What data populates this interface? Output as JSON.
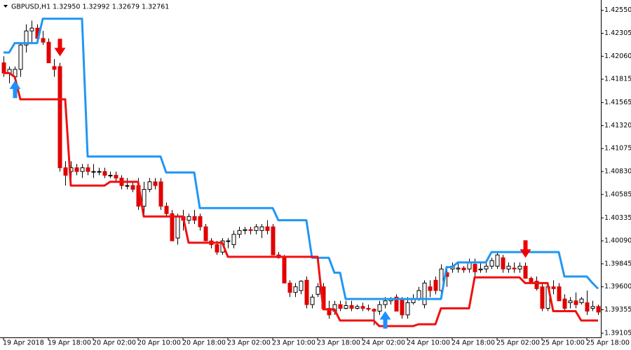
{
  "chart_data": {
    "type": "candlestick",
    "title": "GBPUSD,H1  1.32950 1.32992 1.32679 1.32761",
    "categories": [
      "19 Apr 2018",
      null,
      null,
      null,
      null,
      null,
      null,
      null,
      "19 Apr 18:00",
      null,
      null,
      null,
      null,
      null,
      null,
      null,
      "20 Apr 02:00",
      null,
      null,
      null,
      null,
      null,
      null,
      null,
      "20 Apr 10:00",
      null,
      null,
      null,
      null,
      null,
      null,
      null,
      "20 Apr 18:00",
      null,
      null,
      null,
      null,
      null,
      null,
      null,
      "23 Apr 02:00",
      null,
      null,
      null,
      null,
      null,
      null,
      null,
      "23 Apr 10:00",
      null,
      null,
      null,
      null,
      null,
      null,
      null,
      "23 Apr 18:00",
      null,
      null,
      null,
      null,
      null,
      null,
      null,
      "24 Apr 02:00",
      null,
      null,
      null,
      null,
      null,
      null,
      null,
      "24 Apr 10:00",
      null,
      null,
      null,
      null,
      null,
      null,
      null,
      "24 Apr 18:00",
      null,
      null,
      null,
      null,
      null,
      null,
      null,
      "25 Apr 02:00",
      null,
      null,
      null,
      null,
      null,
      null,
      null,
      "25 Apr 10:00",
      null,
      null,
      null,
      null,
      null,
      null,
      null,
      "25 Apr 18:00",
      null,
      null
    ],
    "open": [
      1.4199,
      1.4188,
      1.4184,
      1.4192,
      1.4218,
      1.4233,
      1.4236,
      1.4225,
      1.4221,
      1.4195,
      1.4195,
      1.4087,
      1.4083,
      1.4087,
      1.4083,
      1.4087,
      1.4083,
      1.4083,
      1.4083,
      1.4079,
      1.4079,
      1.4076,
      1.4068,
      1.4068,
      1.4068,
      1.4046,
      1.4064,
      1.4072,
      1.4072,
      1.4046,
      1.4038,
      1.4012,
      1.4035,
      1.4031,
      1.4035,
      1.4035,
      1.4024,
      1.4009,
      1.4005,
      1.3997,
      1.4009,
      1.4005,
      1.4016,
      1.402,
      1.4021,
      1.402,
      1.402,
      1.4024,
      1.4024,
      1.3994,
      1.3991,
      1.3964,
      1.3954,
      1.3956,
      1.3967,
      1.3941,
      1.3952,
      1.396,
      1.3937,
      1.3934,
      1.3941,
      1.3937,
      1.394,
      1.3937,
      1.3939,
      1.3937,
      1.3936,
      1.3934,
      1.3941,
      1.3945,
      1.3949,
      1.3947,
      1.393,
      1.3943,
      1.3947,
      1.3941,
      1.396,
      1.3967,
      1.3956,
      1.3975,
      1.3979,
      1.3979,
      1.398,
      1.3979,
      1.3984,
      1.3978,
      1.3979,
      1.3982,
      1.3982,
      1.3991,
      1.3979,
      1.398,
      1.3979,
      1.3982,
      1.3969,
      1.3966,
      1.396,
      1.3937,
      1.396,
      1.396,
      1.3947,
      1.3943,
      1.3945,
      1.3943,
      1.3943,
      1.3937,
      1.3939
    ],
    "high": [
      1.4206,
      1.4195,
      1.4195,
      1.4221,
      1.424,
      1.4244,
      1.424,
      1.4233,
      1.4225,
      1.4203,
      1.4199,
      1.4094,
      1.4094,
      1.4091,
      1.4091,
      1.4091,
      1.4091,
      1.4087,
      1.4087,
      1.4083,
      1.4083,
      1.4079,
      1.4076,
      1.4072,
      1.4076,
      1.4072,
      1.4076,
      1.4076,
      1.4076,
      1.405,
      1.4042,
      1.4038,
      1.4042,
      1.4038,
      1.4042,
      1.4038,
      1.4027,
      1.4012,
      1.4009,
      1.4012,
      1.4012,
      1.402,
      1.4024,
      1.4024,
      1.4024,
      1.4027,
      1.4027,
      1.4031,
      1.4027,
      1.3997,
      1.3994,
      1.3967,
      1.3964,
      1.3967,
      1.3971,
      1.3952,
      1.3964,
      1.3964,
      1.3945,
      1.3945,
      1.3945,
      1.3945,
      1.3945,
      1.3941,
      1.3943,
      1.3941,
      1.3937,
      1.3945,
      1.3949,
      1.3949,
      1.3952,
      1.3949,
      1.3949,
      1.3952,
      1.396,
      1.3967,
      1.3967,
      1.3971,
      1.3984,
      1.3982,
      1.3986,
      1.3986,
      1.3982,
      1.399,
      1.399,
      1.3986,
      1.3986,
      1.3991,
      1.3997,
      1.3994,
      1.3986,
      1.3986,
      1.3986,
      1.3986,
      1.3971,
      1.3971,
      1.3964,
      1.3964,
      1.3967,
      1.3964,
      1.3952,
      1.3949,
      1.3954,
      1.3949,
      1.3956,
      1.3945,
      1.3941
    ],
    "low": [
      1.4184,
      1.4177,
      1.4162,
      1.4184,
      1.421,
      1.4221,
      1.4221,
      1.4218,
      1.4199,
      1.4184,
      1.4083,
      1.4068,
      1.4072,
      1.4079,
      1.4076,
      1.4079,
      1.4076,
      1.4079,
      1.4076,
      1.4076,
      1.4072,
      1.4064,
      1.4064,
      1.4061,
      1.4042,
      1.4038,
      1.4061,
      1.4064,
      1.4042,
      1.4035,
      1.4009,
      1.4005,
      1.402,
      1.4027,
      1.4027,
      1.402,
      1.4009,
      1.4001,
      1.3994,
      1.3994,
      1.4001,
      1.4001,
      1.4012,
      1.4016,
      1.4016,
      1.4016,
      1.4012,
      1.4016,
      1.3994,
      1.399,
      1.3964,
      1.3949,
      1.3949,
      1.3952,
      1.3937,
      1.3937,
      1.3949,
      1.3937,
      1.3926,
      1.393,
      1.3934,
      1.3936,
      1.3934,
      1.3936,
      1.3934,
      1.3934,
      1.3919,
      1.393,
      1.3937,
      1.3941,
      1.3934,
      1.3926,
      1.3926,
      1.3941,
      1.3945,
      1.3937,
      1.3949,
      1.3952,
      1.3952,
      1.396,
      1.3975,
      1.3975,
      1.3975,
      1.3975,
      1.3971,
      1.3975,
      1.3975,
      1.3979,
      1.3979,
      1.3975,
      1.3975,
      1.3975,
      1.3975,
      1.3969,
      1.3964,
      1.3956,
      1.3934,
      1.3934,
      1.3952,
      1.3945,
      1.3934,
      1.3937,
      1.3937,
      1.3941,
      1.393,
      1.3934,
      1.393
    ],
    "close": [
      1.4188,
      1.4192,
      1.4192,
      1.4218,
      1.4233,
      1.4236,
      1.4225,
      1.4221,
      1.4199,
      1.4192,
      1.4087,
      1.4079,
      1.4087,
      1.4083,
      1.4087,
      1.4083,
      1.4083,
      1.4083,
      1.4079,
      1.4079,
      1.4076,
      1.4068,
      1.4068,
      1.4064,
      1.4046,
      1.4064,
      1.4072,
      1.4068,
      1.4046,
      1.4038,
      1.4009,
      1.4035,
      1.4031,
      1.4035,
      1.4031,
      1.4024,
      1.4009,
      1.4005,
      1.3997,
      1.4009,
      1.4009,
      1.4016,
      1.402,
      1.4021,
      1.402,
      1.4024,
      1.4024,
      1.402,
      1.3994,
      1.3991,
      1.3964,
      1.3954,
      1.396,
      1.3966,
      1.3941,
      1.3949,
      1.396,
      1.3937,
      1.393,
      1.3941,
      1.3937,
      1.394,
      1.3937,
      1.3939,
      1.3937,
      1.3936,
      1.3934,
      1.3941,
      1.3945,
      1.3947,
      1.3934,
      1.393,
      1.3943,
      1.3947,
      1.3956,
      1.3964,
      1.3956,
      1.3956,
      1.3979,
      1.3971,
      1.3982,
      1.398,
      1.3978,
      1.3986,
      1.3976,
      1.3979,
      1.3982,
      1.3988,
      1.3994,
      1.3979,
      1.3982,
      1.3979,
      1.3982,
      1.3969,
      1.3964,
      1.3958,
      1.3937,
      1.396,
      1.3958,
      1.3945,
      1.3937,
      1.3945,
      1.3941,
      1.3947,
      1.3934,
      1.3939,
      1.3933
    ],
    "up_color": "#ffffff",
    "down_color": "#e10000",
    "wick_color": "#000000",
    "series": [
      {
        "color": "#2196f3",
        "values": [
          1.421,
          1.421,
          1.422,
          1.422,
          1.422,
          1.422,
          1.422,
          1.4246,
          1.4246,
          1.4246,
          1.4246,
          1.4246,
          1.4246,
          1.4246,
          1.4246,
          1.4099,
          1.4099,
          1.4099,
          1.4099,
          1.4099,
          1.4099,
          1.4099,
          1.4099,
          1.4099,
          1.4099,
          1.4099,
          1.4099,
          1.4099,
          1.4099,
          1.4082,
          1.4082,
          1.4082,
          1.4082,
          1.4082,
          1.4082,
          1.4044,
          1.4044,
          1.4044,
          1.4044,
          1.4044,
          1.4044,
          1.4044,
          1.4044,
          1.4044,
          1.4044,
          1.4044,
          1.4044,
          1.4044,
          1.4044,
          1.4031,
          1.4031,
          1.4031,
          1.4031,
          1.4031,
          1.4031,
          1.3991,
          1.3991,
          1.3991,
          1.3991,
          1.3975,
          1.3975,
          1.3947,
          1.3947,
          1.3947,
          1.3947,
          1.3947,
          1.3947,
          1.3947,
          1.3947,
          1.3947,
          1.3947,
          1.3947,
          1.3947,
          1.3947,
          1.3947,
          1.3947,
          1.3947,
          1.3947,
          1.3947,
          1.3981,
          1.3981,
          1.3986,
          1.3986,
          1.3986,
          1.3986,
          1.3986,
          1.3986,
          1.3997,
          1.3997,
          1.3997,
          1.3997,
          1.3997,
          1.3997,
          1.3997,
          1.3997,
          1.3997,
          1.3997,
          1.3997,
          1.3997,
          1.3997,
          1.3971,
          1.3971,
          1.3971,
          1.3971,
          1.3971,
          1.3964,
          1.3958
        ]
      },
      {
        "color": "#f01010",
        "values": [
          1.4188,
          1.4188,
          1.4184,
          1.416,
          1.416,
          1.416,
          1.416,
          1.416,
          1.416,
          1.416,
          1.416,
          1.416,
          1.4068,
          1.4068,
          1.4068,
          1.4068,
          1.4068,
          1.4068,
          1.4068,
          1.4072,
          1.4072,
          1.4072,
          1.4072,
          1.4072,
          1.4072,
          1.4035,
          1.4035,
          1.4035,
          1.4035,
          1.4035,
          1.4035,
          1.4035,
          1.4035,
          1.4007,
          1.4007,
          1.4007,
          1.4007,
          1.4007,
          1.4007,
          1.4007,
          1.3992,
          1.3992,
          1.3992,
          1.3992,
          1.3992,
          1.3992,
          1.3992,
          1.3992,
          1.3992,
          1.3992,
          1.3992,
          1.3992,
          1.3992,
          1.3992,
          1.3992,
          1.3992,
          1.3992,
          1.3936,
          1.3936,
          1.3936,
          1.3924,
          1.3924,
          1.3924,
          1.3924,
          1.3924,
          1.3924,
          1.3924,
          1.3918,
          1.3918,
          1.3918,
          1.3918,
          1.3918,
          1.3918,
          1.3918,
          1.392,
          1.392,
          1.392,
          1.392,
          1.3937,
          1.3937,
          1.3937,
          1.3937,
          1.3937,
          1.3937,
          1.397,
          1.397,
          1.397,
          1.397,
          1.397,
          1.397,
          1.397,
          1.397,
          1.397,
          1.3964,
          1.3964,
          1.3964,
          1.3964,
          1.3964,
          1.3934,
          1.3934,
          1.3934,
          1.3934,
          1.3934,
          1.3924,
          1.3924,
          1.3924,
          1.3924
        ]
      }
    ],
    "down_arrows": {
      "color": "#f00000",
      "x": [
        10,
        93
      ],
      "values": [
        1.4206,
        1.3991
      ]
    },
    "up_arrows": {
      "color": "#1e90ff",
      "x": [
        2,
        68
      ],
      "values": [
        1.418,
        1.3934
      ]
    },
    "ylim": [
      1.3906,
      1.4266
    ],
    "yticks": [
      {
        "value": 1.4255,
        "label": "1.42550"
      },
      1.42305,
      {
        "value": 1.4206,
        "label": "1.42060"
      },
      1.41815,
      1.41565,
      {
        "value": 1.4132,
        "label": "1.41320"
      },
      1.41075,
      {
        "value": 1.4083,
        "label": "1.40830"
      },
      1.40585,
      1.40335,
      {
        "value": 1.4009,
        "label": "1.40090"
      },
      1.39845,
      {
        "value": 1.396,
        "label": "1.39600"
      },
      1.39355,
      1.39105
    ]
  }
}
